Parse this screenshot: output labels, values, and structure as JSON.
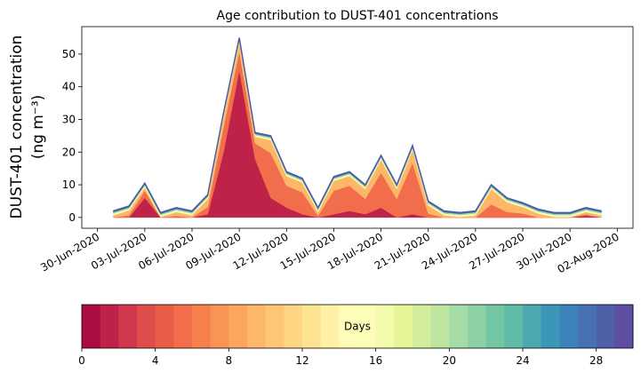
{
  "chart_data": {
    "type": "stacked_area",
    "title": "Age contribution to DUST-401 concentrations",
    "ylabel": [
      "DUST-401 concentration",
      "(ng m⁻³)"
    ],
    "x": [
      "2020-07-01",
      "2020-07-02",
      "2020-07-03",
      "2020-07-04",
      "2020-07-05",
      "2020-07-06",
      "2020-07-07",
      "2020-07-08",
      "2020-07-09",
      "2020-07-10",
      "2020-07-11",
      "2020-07-12",
      "2020-07-13",
      "2020-07-14",
      "2020-07-15",
      "2020-07-16",
      "2020-07-17",
      "2020-07-18",
      "2020-07-19",
      "2020-07-20",
      "2020-07-21",
      "2020-07-22",
      "2020-07-23",
      "2020-07-24",
      "2020-07-25",
      "2020-07-26",
      "2020-07-27",
      "2020-07-28",
      "2020-07-29",
      "2020-07-30",
      "2020-07-31",
      "2020-08-01"
    ],
    "series": [
      {
        "color": "#be2248",
        "values": [
          0,
          0,
          6,
          0,
          0,
          0,
          1,
          20,
          45,
          18,
          6,
          3,
          1,
          0,
          1,
          2,
          1,
          3,
          0,
          1,
          0,
          0,
          0,
          0,
          0,
          0,
          0,
          0,
          0,
          0,
          0.5,
          0
        ]
      },
      {
        "color": "#f26d4b",
        "values": [
          0,
          0.7,
          2.2,
          0,
          0.5,
          0,
          2.2,
          7.7,
          5.7,
          4.7,
          13.7,
          6.7,
          6.7,
          0.5,
          7.2,
          7.7,
          4.7,
          10.7,
          5.7,
          15.7,
          1.2,
          0,
          0,
          0,
          4,
          1.7,
          1.2,
          0,
          0,
          0,
          0.5,
          0
        ]
      },
      {
        "color": "#fdb768",
        "values": [
          0.7,
          1.5,
          1,
          0.2,
          1.2,
          0.7,
          2.5,
          3,
          3,
          2,
          4,
          3,
          3,
          1.2,
          3,
          3,
          3,
          4,
          3,
          4,
          2.5,
          0.7,
          0.2,
          0.7,
          4.7,
          3,
          2,
          1.2,
          0.2,
          0.2,
          0.7,
          0.7
        ]
      },
      {
        "color": "#fbfdb9",
        "values": [
          0.5,
          0.5,
          0.5,
          0.5,
          0.5,
          0.5,
          0.5,
          0.5,
          0.5,
          0.5,
          0.5,
          0.5,
          0.5,
          0.5,
          0.5,
          0.5,
          0.5,
          0.5,
          0.5,
          0.5,
          0.5,
          0.5,
          0.5,
          0.5,
          0.5,
          0.5,
          0.5,
          0.5,
          0.5,
          0.5,
          0.5,
          0.5
        ]
      },
      {
        "color": "#a5dba4",
        "values": [
          0.4,
          0.4,
          0.4,
          0.4,
          0.4,
          0.4,
          0.4,
          0.4,
          0.4,
          0.4,
          0.4,
          0.4,
          0.4,
          0.4,
          0.4,
          0.4,
          0.4,
          0.4,
          0.4,
          0.4,
          0.4,
          0.4,
          0.4,
          0.4,
          0.4,
          0.4,
          0.4,
          0.4,
          0.4,
          0.4,
          0.4,
          0.4
        ]
      },
      {
        "color": "#4771b2",
        "values": [
          0.4,
          0.4,
          0.4,
          0.4,
          0.4,
          0.4,
          0.4,
          0.4,
          0.4,
          0.4,
          0.4,
          0.4,
          0.4,
          0.4,
          0.4,
          0.4,
          0.4,
          0.4,
          0.4,
          0.4,
          0.4,
          0.4,
          0.4,
          0.4,
          0.4,
          0.4,
          0.4,
          0.4,
          0.4,
          0.4,
          0.4,
          0.4
        ]
      }
    ],
    "line_color": "#4a5ba5",
    "xlim": [
      "2020-06-29",
      "2020-08-03"
    ],
    "xticks": [
      {
        "value": "2020-06-30",
        "label": "30-Jun-2020"
      },
      {
        "value": "2020-07-03",
        "label": "03-Jul-2020"
      },
      {
        "value": "2020-07-06",
        "label": "06-Jul-2020"
      },
      {
        "value": "2020-07-09",
        "label": "09-Jul-2020"
      },
      {
        "value": "2020-07-12",
        "label": "12-Jul-2020"
      },
      {
        "value": "2020-07-15",
        "label": "15-Jul-2020"
      },
      {
        "value": "2020-07-18",
        "label": "18-Jul-2020"
      },
      {
        "value": "2020-07-21",
        "label": "21-Jul-2020"
      },
      {
        "value": "2020-07-24",
        "label": "24-Jul-2020"
      },
      {
        "value": "2020-07-27",
        "label": "27-Jul-2020"
      },
      {
        "value": "2020-07-30",
        "label": "30-Jul-2020"
      },
      {
        "value": "2020-08-02",
        "label": "02-Aug-2020"
      }
    ],
    "ylim": [
      -3.3,
      58.4
    ],
    "yticks": [
      0,
      10,
      20,
      30,
      40,
      50
    ],
    "colorbar": {
      "label": "Days",
      "lim": [
        0,
        30
      ],
      "ticks": [
        0,
        4,
        8,
        12,
        16,
        20,
        24,
        28
      ],
      "colors": [
        "#a90d44",
        "#be2248",
        "#d0384d",
        "#de4d4b",
        "#e95d47",
        "#f26d4b",
        "#f67f4b",
        "#f99455",
        "#fca55d",
        "#fdb768",
        "#fdc776",
        "#fed683",
        "#fee492",
        "#fff0a6",
        "#fffbb8",
        "#fbfdb9",
        "#f2faac",
        "#e6f598",
        "#d2ed9b",
        "#bde5a0",
        "#a5dba4",
        "#8ed1a4",
        "#74c7a5",
        "#5fbaa8",
        "#4ba8b1",
        "#3c96b8",
        "#3d83bb",
        "#4771b2",
        "#5060a8",
        "#5e4fa2"
      ]
    }
  }
}
